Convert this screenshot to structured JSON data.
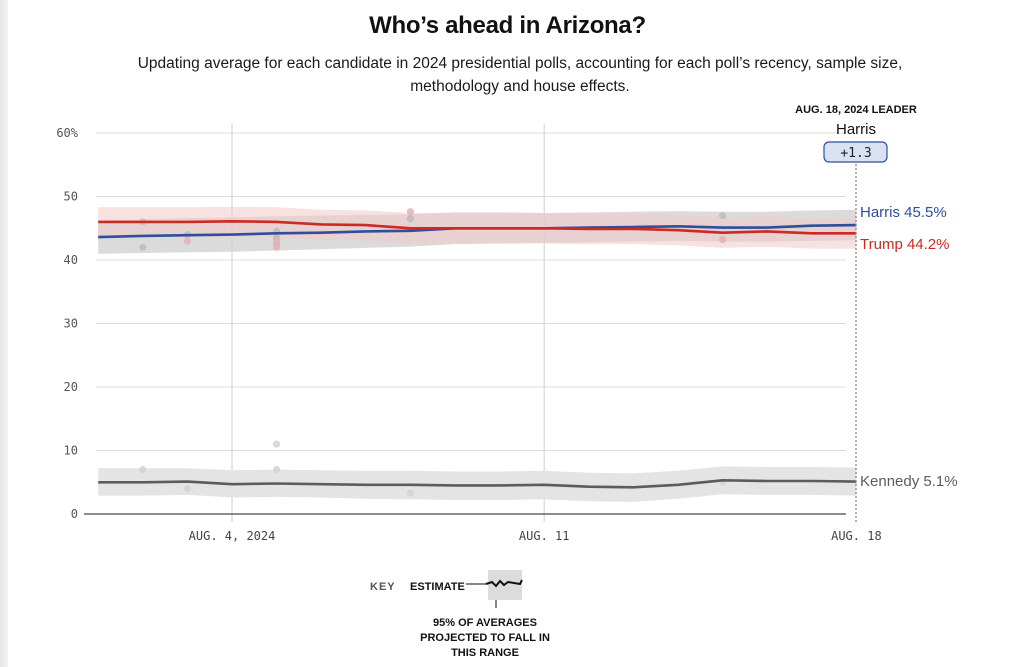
{
  "title": "Who’s ahead in Arizona?",
  "subtitle": "Updating average for each candidate in 2024 presidential polls, accounting for each poll’s recency, sample size, methodology and house effects.",
  "leader": {
    "heading": "AUG. 18, 2024 LEADER",
    "name": "Harris",
    "margin": "+1.3"
  },
  "key": {
    "label": "KEY",
    "estimate": "ESTIMATE",
    "range": "95% OF AVERAGES PROJECTED TO FALL IN THIS RANGE"
  },
  "colors": {
    "harris": "#2d4f9c",
    "trump": "#cc2a22",
    "kennedy": "#5c5c5c",
    "harris_band": "#cfcfcf",
    "trump_band": "#f3c9c9",
    "kennedy_band": "#e4e4e4",
    "badge_fill": "#d8e2f2",
    "badge_stroke": "#2d4f9c"
  },
  "chart_data": {
    "type": "line",
    "title": "Who’s ahead in Arizona?",
    "xlabel": "",
    "ylabel": "",
    "ylim": [
      0,
      60
    ],
    "yticks": [
      0,
      10,
      20,
      30,
      40,
      50,
      60
    ],
    "ytick_labels": [
      "0",
      "10",
      "20",
      "30",
      "40",
      "50",
      "60%"
    ],
    "x_range_days": [
      -3,
      14
    ],
    "x_origin_date": "AUG. 4, 2024",
    "xticks": [
      {
        "day": 0,
        "label": "AUG. 4, 2024"
      },
      {
        "day": 7,
        "label": "AUG. 11"
      },
      {
        "day": 14,
        "label": "AUG. 18"
      }
    ],
    "grid": true,
    "legend": "right-end labels",
    "x_days": [
      -3,
      -2,
      -1,
      0,
      1,
      2,
      3,
      4,
      5,
      6,
      7,
      8,
      9,
      10,
      11,
      12,
      13,
      14
    ],
    "series": [
      {
        "name": "Harris",
        "end_label": "Harris 45.5%",
        "values": [
          43.6,
          43.8,
          43.9,
          44.0,
          44.2,
          44.3,
          44.5,
          44.6,
          45.0,
          45.0,
          45.0,
          45.1,
          45.2,
          45.3,
          45.1,
          45.1,
          45.4,
          45.5
        ],
        "band_low": [
          41.0,
          41.1,
          41.2,
          41.3,
          41.5,
          41.7,
          41.9,
          42.1,
          42.5,
          42.6,
          42.7,
          42.8,
          42.9,
          43.0,
          42.9,
          42.9,
          43.0,
          43.1
        ],
        "band_high": [
          46.2,
          46.4,
          46.6,
          46.7,
          46.9,
          47.0,
          47.1,
          47.2,
          47.5,
          47.5,
          47.4,
          47.5,
          47.6,
          47.7,
          47.6,
          47.6,
          47.8,
          47.9
        ]
      },
      {
        "name": "Trump",
        "end_label": "Trump 44.2%",
        "values": [
          46.0,
          46.0,
          46.0,
          46.1,
          46.0,
          45.6,
          45.5,
          45.0,
          45.0,
          45.0,
          45.0,
          44.9,
          44.9,
          44.7,
          44.3,
          44.5,
          44.2,
          44.2
        ],
        "band_low": [
          43.6,
          43.6,
          43.6,
          43.7,
          43.6,
          43.2,
          43.1,
          42.6,
          42.6,
          42.6,
          42.6,
          42.5,
          42.5,
          42.3,
          41.9,
          42.1,
          41.8,
          41.8
        ],
        "band_high": [
          48.3,
          48.3,
          48.3,
          48.4,
          48.3,
          47.9,
          47.8,
          47.4,
          47.4,
          47.4,
          47.4,
          47.3,
          47.3,
          47.1,
          46.7,
          46.9,
          46.6,
          46.6
        ]
      },
      {
        "name": "Kennedy",
        "end_label": "Kennedy 5.1%",
        "values": [
          5.0,
          5.0,
          5.1,
          4.7,
          4.8,
          4.7,
          4.6,
          4.6,
          4.5,
          4.5,
          4.6,
          4.3,
          4.2,
          4.6,
          5.3,
          5.2,
          5.2,
          5.1
        ],
        "band_low": [
          2.9,
          2.9,
          3.0,
          2.6,
          2.7,
          2.6,
          2.4,
          2.3,
          2.2,
          2.2,
          2.3,
          2.0,
          1.9,
          2.4,
          3.1,
          3.0,
          3.0,
          2.9
        ],
        "band_high": [
          7.2,
          7.2,
          7.2,
          6.9,
          7.0,
          6.9,
          6.8,
          6.8,
          6.7,
          6.7,
          6.8,
          6.5,
          6.4,
          6.8,
          7.5,
          7.4,
          7.4,
          7.3
        ]
      }
    ],
    "polls": {
      "Harris": [
        {
          "day": -2,
          "value": 42.0
        },
        {
          "day": -1,
          "value": 44.0
        },
        {
          "day": 1,
          "value": 44.5
        },
        {
          "day": 1,
          "value": 43.5
        },
        {
          "day": 1,
          "value": 42.5
        },
        {
          "day": 4,
          "value": 46.5
        },
        {
          "day": 11,
          "value": 47.0
        }
      ],
      "Trump": [
        {
          "day": -2,
          "value": 46.0
        },
        {
          "day": -1,
          "value": 43.0
        },
        {
          "day": 1,
          "value": 43.0
        },
        {
          "day": 1,
          "value": 42.0
        },
        {
          "day": 4,
          "value": 47.6
        },
        {
          "day": 11,
          "value": 43.2
        }
      ],
      "Kennedy": [
        {
          "day": -2,
          "value": 7.0
        },
        {
          "day": -1,
          "value": 4.0
        },
        {
          "day": 1,
          "value": 11.0
        },
        {
          "day": 1,
          "value": 7.0
        },
        {
          "day": 4,
          "value": 3.3
        },
        {
          "day": 11,
          "value": 5.0
        }
      ]
    }
  }
}
